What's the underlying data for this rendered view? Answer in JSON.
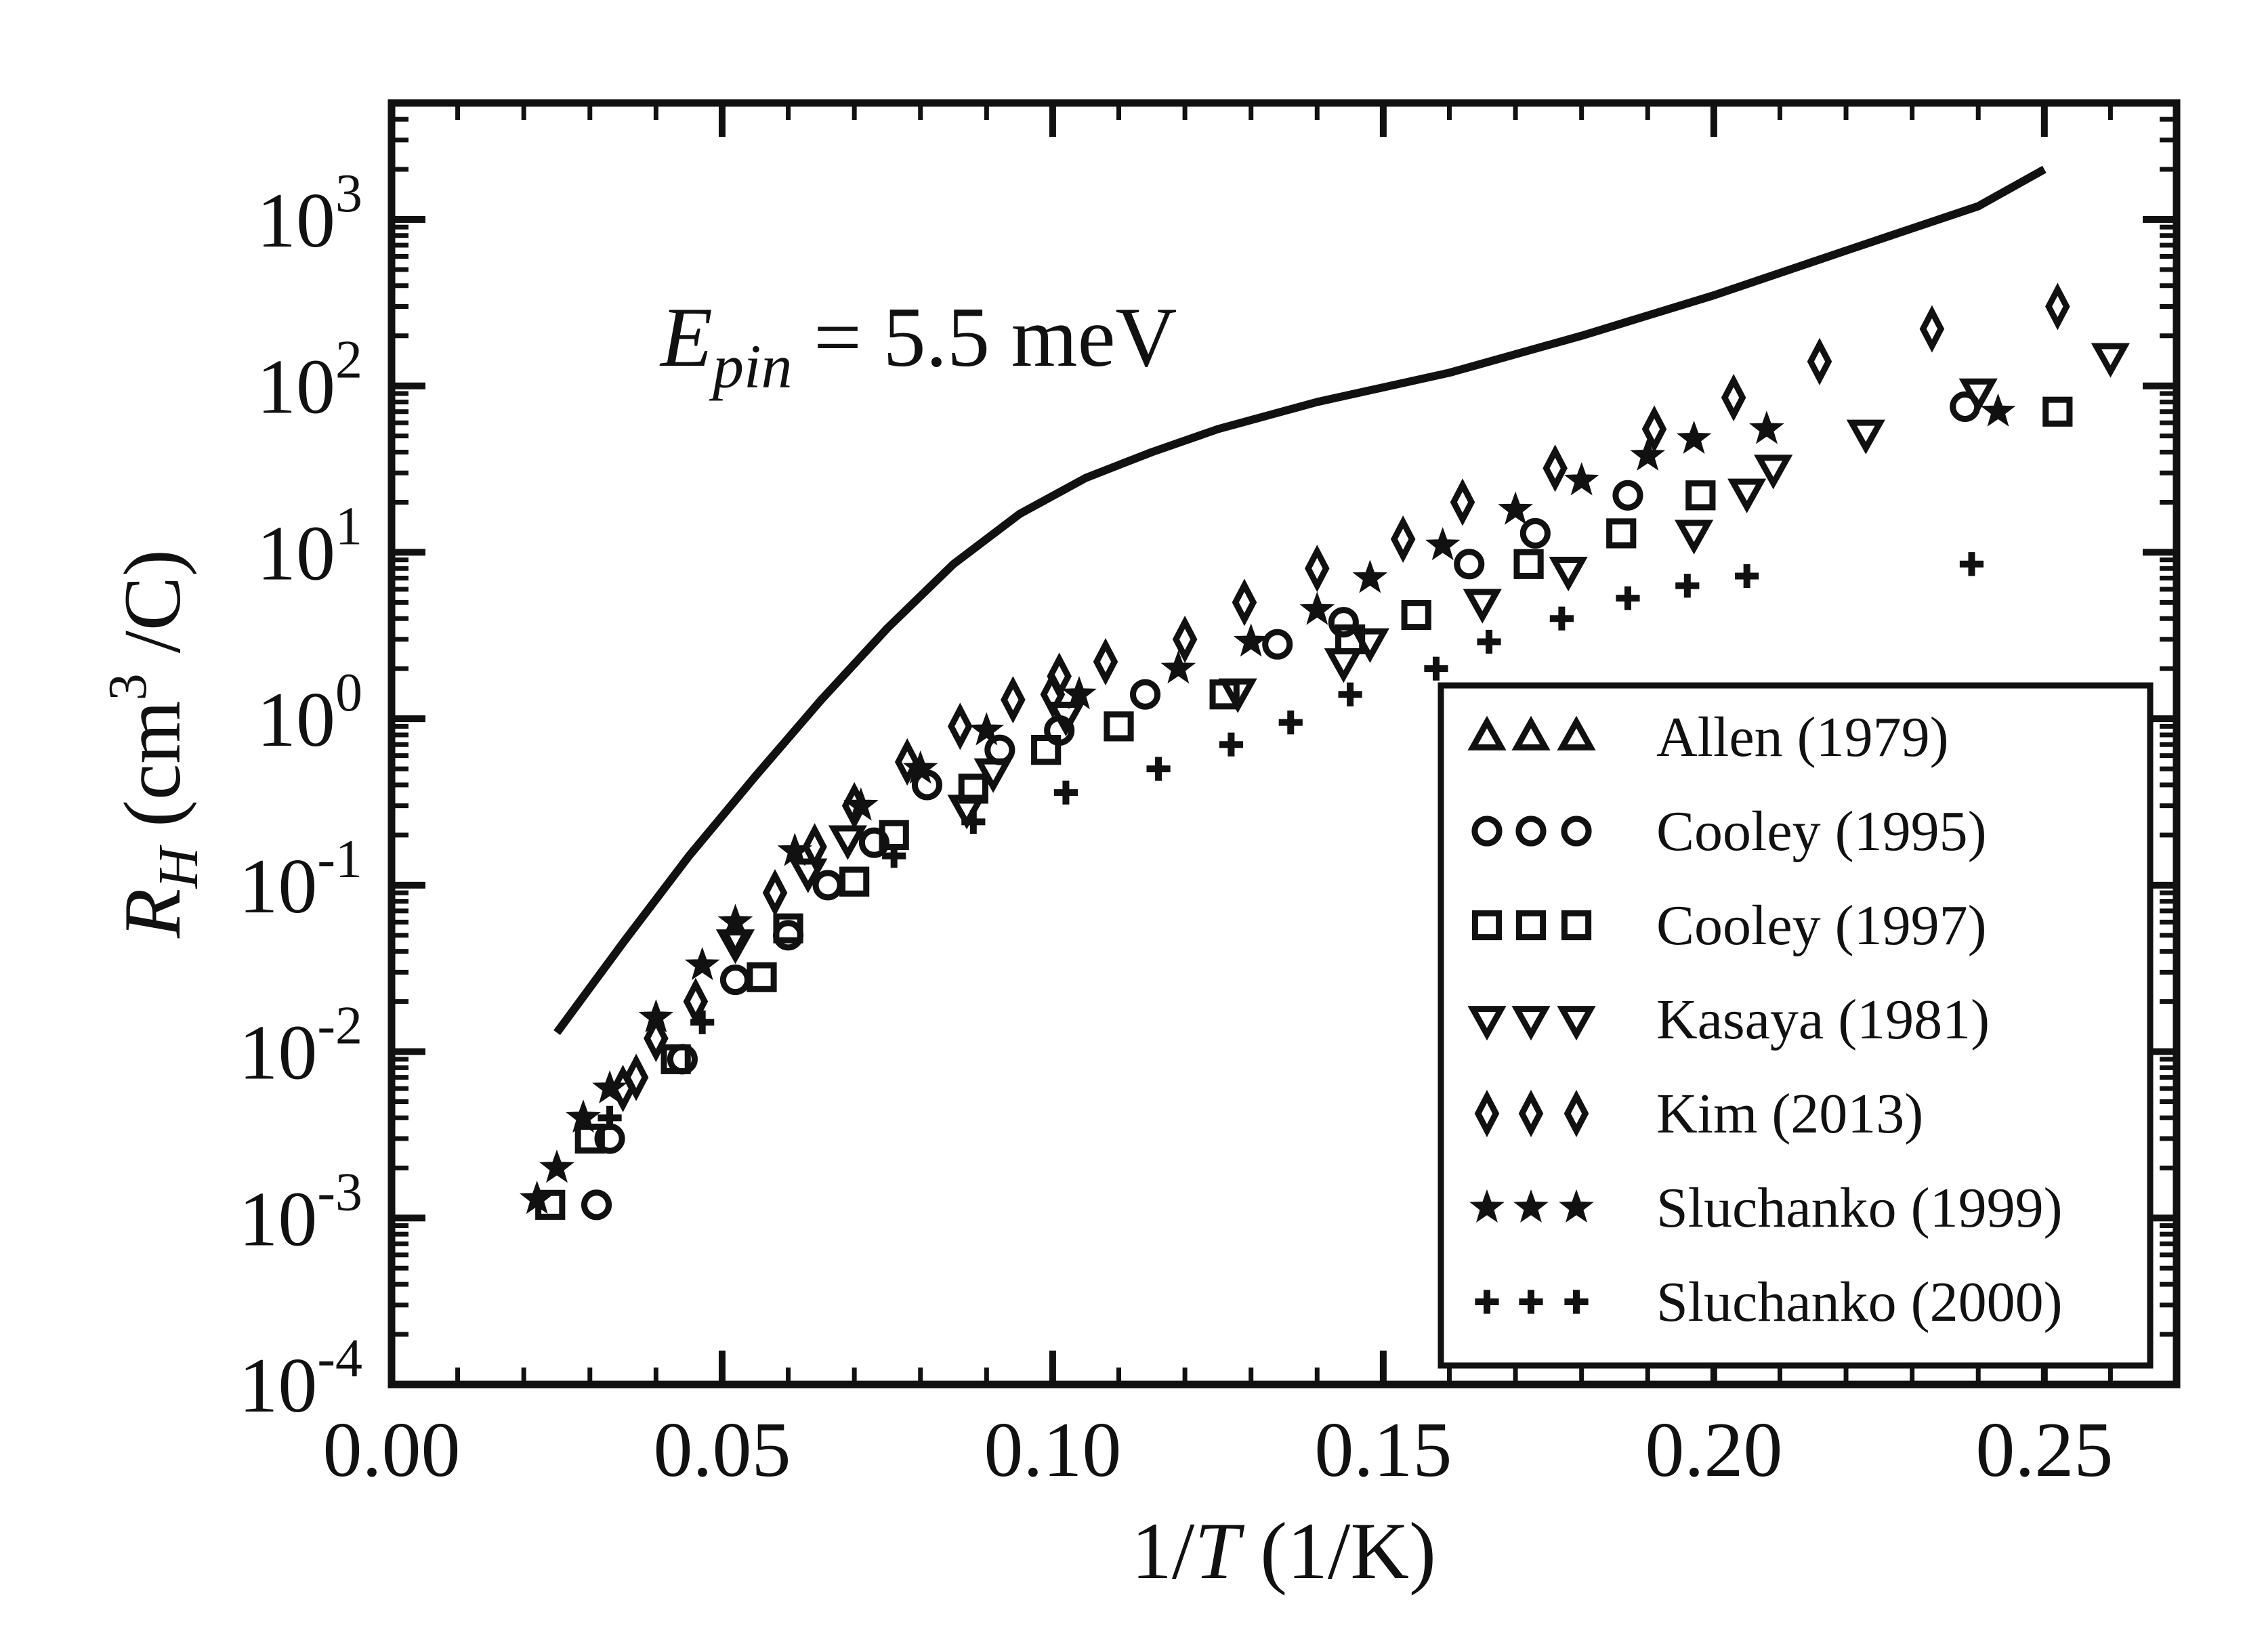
{
  "chart_data": {
    "type": "scatter",
    "title": "",
    "xlabel": "1/T (1/K)",
    "ylabel": "R_H (cm^3 /C)",
    "xlim": [
      0.0,
      0.27
    ],
    "ylim_log10": [
      -4,
      3.7
    ],
    "yscale": "log",
    "legend_position": "bottom-right",
    "x_ticks": [
      {
        "value": 0.0,
        "label": "0.00"
      },
      {
        "value": 0.05,
        "label": "0.05"
      },
      {
        "value": 0.1,
        "label": "0.10"
      },
      {
        "value": 0.15,
        "label": "0.15"
      },
      {
        "value": 0.2,
        "label": "0.20"
      },
      {
        "value": 0.25,
        "label": "0.25"
      }
    ],
    "y_ticks": [
      {
        "exp": -4,
        "base": "10",
        "sup": "-4"
      },
      {
        "exp": -3,
        "base": "10",
        "sup": "-3"
      },
      {
        "exp": -2,
        "base": "10",
        "sup": "-2"
      },
      {
        "exp": -1,
        "base": "10",
        "sup": "-1"
      },
      {
        "exp": 0,
        "base": "10",
        "sup": "0"
      },
      {
        "exp": 1,
        "base": "10",
        "sup": "1"
      },
      {
        "exp": 2,
        "base": "10",
        "sup": "2"
      },
      {
        "exp": 3,
        "base": "10",
        "sup": "3"
      }
    ],
    "annotation": {
      "main": "E",
      "sub": "pin",
      "rest": " = 5.5 meV"
    },
    "model_curve": {
      "name": "E_pin = 5.5 meV",
      "points": [
        [
          0.025,
          0.013
        ],
        [
          0.035,
          0.045
        ],
        [
          0.045,
          0.15
        ],
        [
          0.055,
          0.45
        ],
        [
          0.065,
          1.3
        ],
        [
          0.075,
          3.5
        ],
        [
          0.085,
          8.5
        ],
        [
          0.095,
          17
        ],
        [
          0.105,
          28
        ],
        [
          0.115,
          40
        ],
        [
          0.125,
          55
        ],
        [
          0.14,
          80
        ],
        [
          0.16,
          120
        ],
        [
          0.18,
          200
        ],
        [
          0.2,
          350
        ],
        [
          0.22,
          650
        ],
        [
          0.24,
          1200
        ],
        [
          0.25,
          2000
        ]
      ]
    },
    "series": [
      {
        "name": "Allen (1979)",
        "marker": "triangle-up",
        "points": []
      },
      {
        "name": "Cooley (1995)",
        "marker": "circle",
        "points": [
          [
            0.031,
            0.0012
          ],
          [
            0.033,
            0.003
          ],
          [
            0.044,
            0.009
          ],
          [
            0.052,
            0.027
          ],
          [
            0.06,
            0.05
          ],
          [
            0.066,
            0.1
          ],
          [
            0.073,
            0.18
          ],
          [
            0.081,
            0.4
          ],
          [
            0.092,
            0.65
          ],
          [
            0.101,
            0.85
          ],
          [
            0.114,
            1.4
          ],
          [
            0.134,
            2.8
          ],
          [
            0.144,
            3.8
          ],
          [
            0.163,
            8.5
          ],
          [
            0.173,
            13
          ],
          [
            0.187,
            22
          ],
          [
            0.238,
            75
          ]
        ]
      },
      {
        "name": "Cooley (1997)",
        "marker": "square",
        "points": [
          [
            0.024,
            0.0012
          ],
          [
            0.03,
            0.003
          ],
          [
            0.043,
            0.009
          ],
          [
            0.056,
            0.028
          ],
          [
            0.06,
            0.055
          ],
          [
            0.07,
            0.105
          ],
          [
            0.076,
            0.2
          ],
          [
            0.088,
            0.38
          ],
          [
            0.099,
            0.65
          ],
          [
            0.11,
            0.9
          ],
          [
            0.126,
            1.4
          ],
          [
            0.145,
            3.0
          ],
          [
            0.155,
            4.2
          ],
          [
            0.172,
            8.5
          ],
          [
            0.186,
            13
          ],
          [
            0.198,
            22
          ],
          [
            0.252,
            70
          ]
        ]
      },
      {
        "name": "Kasaya (1981)",
        "marker": "triangle-down",
        "points": [
          [
            0.052,
            0.045
          ],
          [
            0.063,
            0.12
          ],
          [
            0.069,
            0.19
          ],
          [
            0.087,
            0.29
          ],
          [
            0.091,
            0.48
          ],
          [
            0.102,
            1.05
          ],
          [
            0.128,
            1.45
          ],
          [
            0.144,
            2.2
          ],
          [
            0.148,
            2.9
          ],
          [
            0.165,
            5.0
          ],
          [
            0.178,
            7.8
          ],
          [
            0.197,
            13
          ],
          [
            0.205,
            23
          ],
          [
            0.209,
            32
          ],
          [
            0.223,
            52
          ],
          [
            0.24,
            92
          ],
          [
            0.26,
            150
          ]
        ]
      },
      {
        "name": "Kim (2013)",
        "marker": "diamond",
        "points": [
          [
            0.035,
            0.006
          ],
          [
            0.037,
            0.007
          ],
          [
            0.04,
            0.012
          ],
          [
            0.046,
            0.02
          ],
          [
            0.052,
            0.05
          ],
          [
            0.058,
            0.09
          ],
          [
            0.064,
            0.17
          ],
          [
            0.07,
            0.3
          ],
          [
            0.078,
            0.55
          ],
          [
            0.086,
            0.9
          ],
          [
            0.094,
            1.3
          ],
          [
            0.1,
            1.4
          ],
          [
            0.101,
            1.8
          ],
          [
            0.108,
            2.2
          ],
          [
            0.12,
            3.0
          ],
          [
            0.129,
            5.0
          ],
          [
            0.14,
            8.0
          ],
          [
            0.153,
            12
          ],
          [
            0.162,
            20
          ],
          [
            0.176,
            32
          ],
          [
            0.191,
            55
          ],
          [
            0.203,
            85
          ],
          [
            0.216,
            140
          ],
          [
            0.233,
            220
          ],
          [
            0.252,
            300
          ]
        ]
      },
      {
        "name": "Sluchanko (1999)",
        "marker": "star",
        "points": [
          [
            0.022,
            0.0013
          ],
          [
            0.025,
            0.002
          ],
          [
            0.029,
            0.004
          ],
          [
            0.033,
            0.006
          ],
          [
            0.04,
            0.016
          ],
          [
            0.047,
            0.033
          ],
          [
            0.052,
            0.06
          ],
          [
            0.061,
            0.16
          ],
          [
            0.071,
            0.3
          ],
          [
            0.08,
            0.5
          ],
          [
            0.09,
            0.85
          ],
          [
            0.104,
            1.4
          ],
          [
            0.119,
            2.0
          ],
          [
            0.13,
            2.9
          ],
          [
            0.14,
            4.5
          ],
          [
            0.148,
            7.0
          ],
          [
            0.159,
            11
          ],
          [
            0.17,
            18
          ],
          [
            0.18,
            27
          ],
          [
            0.19,
            38
          ],
          [
            0.197,
            48
          ],
          [
            0.208,
            55
          ],
          [
            0.243,
            70
          ]
        ]
      },
      {
        "name": "Sluchanko (2000)",
        "marker": "plus",
        "points": [
          [
            0.033,
            0.004
          ],
          [
            0.047,
            0.015
          ],
          [
            0.076,
            0.15
          ],
          [
            0.088,
            0.24
          ],
          [
            0.102,
            0.36
          ],
          [
            0.116,
            0.5
          ],
          [
            0.127,
            0.7
          ],
          [
            0.136,
            0.95
          ],
          [
            0.145,
            1.4
          ],
          [
            0.158,
            2.0
          ],
          [
            0.166,
            2.9
          ],
          [
            0.177,
            4.0
          ],
          [
            0.187,
            5.3
          ],
          [
            0.196,
            6.3
          ],
          [
            0.205,
            7.2
          ],
          [
            0.239,
            8.5
          ]
        ]
      }
    ]
  }
}
